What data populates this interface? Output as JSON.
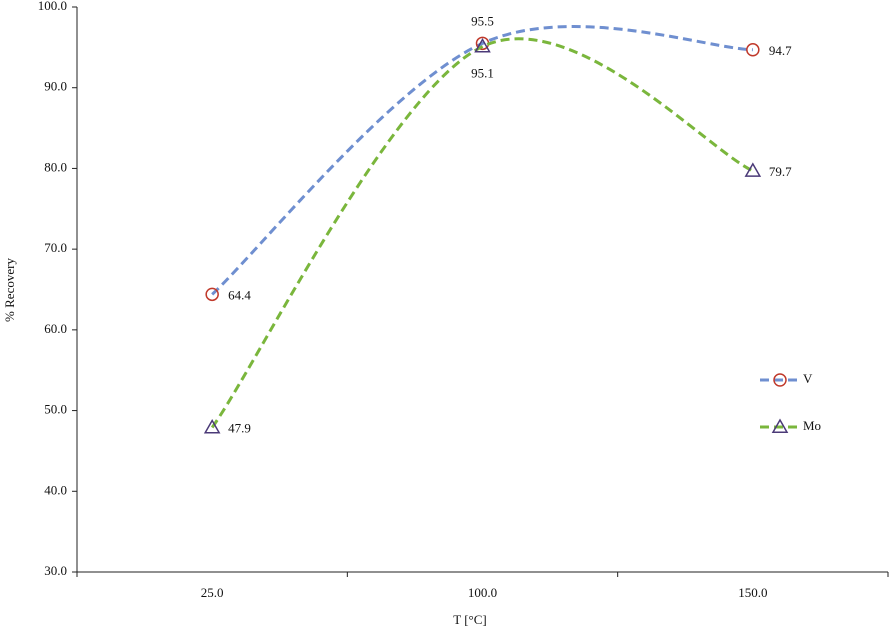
{
  "chart_data": {
    "type": "line",
    "x_label": "T [°C]",
    "y_label": "% Recovery",
    "categories": [
      "25.0",
      "100.0",
      "150.0"
    ],
    "ylim": [
      30,
      100
    ],
    "yticks": [
      {
        "value": 30,
        "label": "30.0"
      },
      {
        "value": 40,
        "label": "40.0"
      },
      {
        "value": 50,
        "label": "50.0"
      },
      {
        "value": 60,
        "label": "60.0"
      },
      {
        "value": 70,
        "label": "70.0"
      },
      {
        "value": 80,
        "label": "80.0"
      },
      {
        "value": 90,
        "label": "90.0"
      },
      {
        "value": 100,
        "label": "100.0"
      }
    ],
    "smooth": true,
    "legend": "right",
    "series": [
      {
        "name": "V",
        "color": "#6f8fd0",
        "marker": "circle",
        "marker_color": "#c0392b",
        "values": [
          64.4,
          95.5,
          94.7
        ]
      },
      {
        "name": "Mo",
        "color": "#7ab63c",
        "marker": "triangle",
        "marker_color": "#4b3a78",
        "values": [
          47.9,
          95.1,
          79.7
        ]
      }
    ]
  }
}
